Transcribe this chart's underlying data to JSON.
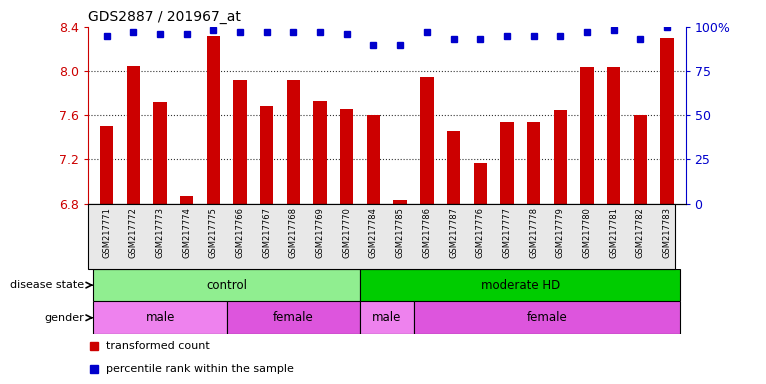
{
  "title": "GDS2887 / 201967_at",
  "samples": [
    "GSM217771",
    "GSM217772",
    "GSM217773",
    "GSM217774",
    "GSM217775",
    "GSM217766",
    "GSM217767",
    "GSM217768",
    "GSM217769",
    "GSM217770",
    "GSM217784",
    "GSM217785",
    "GSM217786",
    "GSM217787",
    "GSM217776",
    "GSM217777",
    "GSM217778",
    "GSM217779",
    "GSM217780",
    "GSM217781",
    "GSM217782",
    "GSM217783"
  ],
  "values": [
    7.5,
    8.05,
    7.72,
    6.87,
    8.32,
    7.92,
    7.68,
    7.92,
    7.73,
    7.66,
    7.6,
    6.83,
    7.95,
    7.46,
    7.17,
    7.54,
    7.54,
    7.65,
    8.04,
    8.04,
    7.6,
    8.3
  ],
  "percentiles": [
    95,
    97,
    96,
    96,
    98,
    97,
    97,
    97,
    97,
    96,
    90,
    90,
    97,
    93,
    93,
    95,
    95,
    95,
    97,
    98,
    93,
    100
  ],
  "ylim": [
    6.8,
    8.4
  ],
  "yticks": [
    6.8,
    7.2,
    7.6,
    8.0,
    8.4
  ],
  "right_yticks": [
    0,
    25,
    50,
    75,
    100
  ],
  "bar_color": "#cc0000",
  "dot_color": "#0000cc",
  "disease_state": [
    {
      "label": "control",
      "start": 0,
      "end": 10,
      "color": "#90ee90"
    },
    {
      "label": "moderate HD",
      "start": 10,
      "end": 22,
      "color": "#00cc00"
    }
  ],
  "gender": [
    {
      "label": "male",
      "start": 0,
      "end": 5,
      "color": "#ee82ee"
    },
    {
      "label": "female",
      "start": 5,
      "end": 10,
      "color": "#dd55dd"
    },
    {
      "label": "male",
      "start": 10,
      "end": 12,
      "color": "#ee82ee"
    },
    {
      "label": "female",
      "start": 12,
      "end": 22,
      "color": "#dd55dd"
    }
  ],
  "legend_items": [
    {
      "label": "transformed count",
      "color": "#cc0000"
    },
    {
      "label": "percentile rank within the sample",
      "color": "#0000cc"
    }
  ],
  "bg_color": "#e8e8e8"
}
